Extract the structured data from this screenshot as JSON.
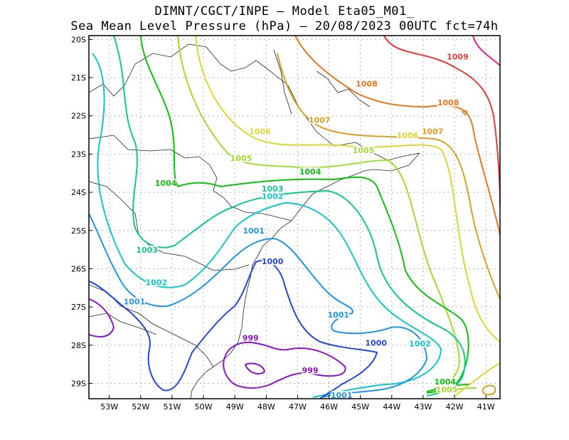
{
  "header": {
    "line1": "DIMNT/CGCT/INPE –  Model Eta05_M01_",
    "line2": "Sea Mean Level Pressure (hPa) – 20/08/2023 00UTC fct=74h"
  },
  "axes": {
    "lon_ticks": [
      "53W",
      "52W",
      "51W",
      "50W",
      "49W",
      "48W",
      "47W",
      "46W",
      "45W",
      "44W",
      "43W",
      "42W",
      "41W"
    ],
    "lat_ticks": [
      "20S",
      "21S",
      "22S",
      "23S",
      "24S",
      "25S",
      "26S",
      "27S",
      "28S",
      "29S"
    ]
  },
  "chart_data": {
    "type": "contour-map",
    "variable": "Sea Mean Level Pressure (hPa)",
    "lon_range": [
      -53.65,
      -40.55
    ],
    "lat_range": [
      -29.4,
      -19.9
    ],
    "grid": true,
    "contour_labels": [
      {
        "text": "1009",
        "lon": -41.9,
        "lat": -20.5,
        "color": "#e03c3c"
      },
      {
        "text": "1008",
        "lon": -44.8,
        "lat": -21.2,
        "color": "#e8781e"
      },
      {
        "text": "1008",
        "lon": -42.2,
        "lat": -21.7,
        "color": "#e8781e"
      },
      {
        "text": "1007",
        "lon": -46.3,
        "lat": -22.15,
        "color": "#d9a023"
      },
      {
        "text": "1007",
        "lon": -42.7,
        "lat": -22.45,
        "color": "#d9a023"
      },
      {
        "text": "1006",
        "lon": -48.2,
        "lat": -22.45,
        "color": "#d8d830"
      },
      {
        "text": "1006",
        "lon": -43.5,
        "lat": -22.55,
        "color": "#d8d830"
      },
      {
        "text": "1005",
        "lon": -48.8,
        "lat": -23.15,
        "color": "#a0dc30"
      },
      {
        "text": "1005",
        "lon": -44.9,
        "lat": -22.95,
        "color": "#a0dc30"
      },
      {
        "text": "1004",
        "lon": -51.2,
        "lat": -23.8,
        "color": "#10c010"
      },
      {
        "text": "1004",
        "lon": -46.6,
        "lat": -23.5,
        "color": "#10c010"
      },
      {
        "text": "1003",
        "lon": -47.8,
        "lat": -23.95,
        "color": "#10c890"
      },
      {
        "text": "1003",
        "lon": -51.8,
        "lat": -25.55,
        "color": "#10c890"
      },
      {
        "text": "1002",
        "lon": -47.8,
        "lat": -24.15,
        "color": "#10c8c8"
      },
      {
        "text": "1002",
        "lon": -51.5,
        "lat": -26.4,
        "color": "#10c8c8"
      },
      {
        "text": "1002",
        "lon": -43.1,
        "lat": -28.0,
        "color": "#10c8c8"
      },
      {
        "text": "1001",
        "lon": -48.4,
        "lat": -25.05,
        "color": "#1e96e6"
      },
      {
        "text": "1001",
        "lon": -52.2,
        "lat": -26.9,
        "color": "#1e96e6"
      },
      {
        "text": "1001",
        "lon": -45.7,
        "lat": -27.25,
        "color": "#1e96e6"
      },
      {
        "text": "1001",
        "lon": -45.6,
        "lat": -29.35,
        "color": "#1e96e6"
      },
      {
        "text": "1000",
        "lon": -47.8,
        "lat": -25.85,
        "color": "#2346dc"
      },
      {
        "text": "1000",
        "lon": -44.5,
        "lat": -27.98,
        "color": "#2346dc"
      },
      {
        "text": "999",
        "lon": -48.5,
        "lat": -27.85,
        "color": "#8c14c8"
      },
      {
        "text": "999",
        "lon": -46.6,
        "lat": -28.7,
        "color": "#8c14c8"
      },
      {
        "text": "1004",
        "lon": -42.3,
        "lat": -29.0,
        "color": "#10c010"
      },
      {
        "text": "1005",
        "lon": -42.25,
        "lat": -29.2,
        "color": "#a0dc30"
      }
    ],
    "isobar_colors": {
      "999": "#8c14c8",
      "1000": "#2346dc",
      "1001": "#1e96e6",
      "1002": "#10c8c8",
      "1003": "#10c890",
      "1004": "#10c010",
      "1005": "#a0dc30",
      "1006": "#d8d830",
      "1007": "#d9a023",
      "1008": "#e8781e",
      "1009": "#e03c3c",
      "1010": "#e81e8c"
    }
  }
}
